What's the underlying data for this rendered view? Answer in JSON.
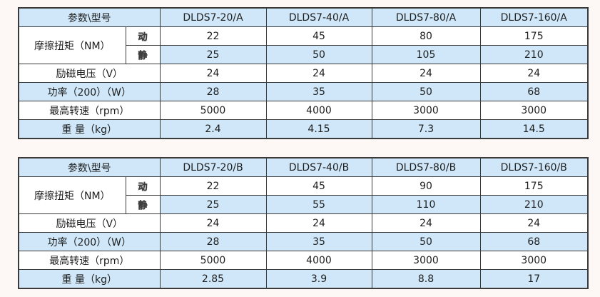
{
  "tables": [
    {
      "name": "series-a",
      "param_header": "参数\\型号",
      "models": [
        "DLDS7-20/A",
        "DLDS7-40/A",
        "DLDS7-80/A",
        "DLDS7-160/A"
      ],
      "friction": {
        "label": "摩擦扭矩（NM）",
        "rows": [
          {
            "sub": "动",
            "values": [
              "22",
              "45",
              "80",
              "175"
            ]
          },
          {
            "sub": "静",
            "values": [
              "25",
              "50",
              "105",
              "210"
            ]
          }
        ]
      },
      "rows": [
        {
          "label": "励磁电压（V）",
          "values": [
            "24",
            "24",
            "24",
            "24"
          ]
        },
        {
          "label": "功率（200）（W）",
          "values": [
            "28",
            "35",
            "50",
            "68"
          ]
        },
        {
          "label": "最高转速（rpm）",
          "values": [
            "5000",
            "4000",
            "3000",
            "3000"
          ]
        },
        {
          "label": "重 量（kg）",
          "values": [
            "2.4",
            "4.15",
            "7.3",
            "14.5"
          ]
        }
      ]
    },
    {
      "name": "series-b",
      "param_header": "参数\\型号",
      "models": [
        "DLDS7-20/B",
        "DLDS7-40/B",
        "DLDS7-80/B",
        "DLDS7-160/B"
      ],
      "friction": {
        "label": "摩擦扭矩（NM）",
        "rows": [
          {
            "sub": "动",
            "values": [
              "22",
              "45",
              "90",
              "175"
            ]
          },
          {
            "sub": "静",
            "values": [
              "25",
              "55",
              "110",
              "210"
            ]
          }
        ]
      },
      "rows": [
        {
          "label": "励磁电压（V）",
          "values": [
            "24",
            "24",
            "24",
            "24"
          ]
        },
        {
          "label": "功率（200）（W）",
          "values": [
            "28",
            "35",
            "50",
            "68"
          ]
        },
        {
          "label": "最高转速（rpm）",
          "values": [
            "5000",
            "4000",
            "3000",
            "3000"
          ]
        },
        {
          "label": "重 量（kg）",
          "values": [
            "2.85",
            "3.9",
            "8.8",
            "17"
          ]
        }
      ]
    }
  ],
  "colors": {
    "row_shade": "#cfe7f8",
    "border": "#3a3a3a",
    "background": "#fdf8f6",
    "text": "#1e1e1e"
  }
}
